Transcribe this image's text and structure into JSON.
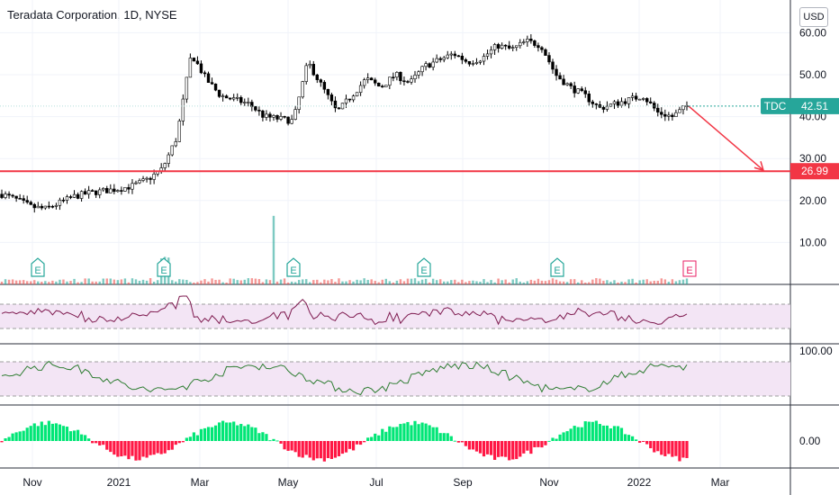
{
  "header": {
    "title": "Teradata Corporation, 1D, NYSE",
    "currency": "USD"
  },
  "colors": {
    "up": "#000000",
    "down": "#000000",
    "level_line": "#f23645",
    "ticker_tag": "#26a69a",
    "earnings": "#26a69a",
    "earnings_upcoming": "#e91e63",
    "rsi": "#7e1a4f",
    "osc": "#2e7d32",
    "band_fill": "#f3e5f5",
    "hist_pos": "#00e676",
    "hist_neg": "#ff1744"
  },
  "chart_data": {
    "type": "candlestick",
    "price_axis": {
      "ticks": [
        "60.00",
        "50.00",
        "40.00",
        "30.00",
        "20.00",
        "10.00"
      ],
      "ylim": [
        0,
        62
      ]
    },
    "time_axis": {
      "ticks": [
        "Nov",
        "2021",
        "Mar",
        "May",
        "Jul",
        "Sep",
        "Nov",
        "2022",
        "Mar"
      ]
    },
    "ticker_tag": {
      "symbol": "TDC",
      "price": "42.51",
      "value": 42.51
    },
    "horizontal_level": {
      "label": "26.99",
      "value": 26.99
    },
    "projection_arrow": {
      "from": 42.5,
      "to": 26.99
    },
    "price_series": [
      [
        "Oct",
        21.5
      ],
      [
        "Oct",
        20.2
      ],
      [
        "Oct",
        18.5
      ],
      [
        "Nov",
        18.0
      ],
      [
        "Nov",
        19.5
      ],
      [
        "Nov",
        21.0
      ],
      [
        "Dec",
        21.8
      ],
      [
        "Dec",
        22.3
      ],
      [
        "Dec",
        22.8
      ],
      [
        "Jan",
        23.5
      ],
      [
        "Jan",
        25.0
      ],
      [
        "Jan",
        27.5
      ],
      [
        "Feb",
        35.0
      ],
      [
        "Feb",
        55.0
      ],
      [
        "Feb",
        49.0
      ],
      [
        "Feb",
        45.0
      ],
      [
        "Mar",
        44.0
      ],
      [
        "Mar",
        43.0
      ],
      [
        "Mar",
        40.0
      ],
      [
        "Apr",
        39.5
      ],
      [
        "Apr",
        39.0
      ],
      [
        "May",
        53.0
      ],
      [
        "May",
        47.0
      ],
      [
        "May",
        41.0
      ],
      [
        "May",
        45.0
      ],
      [
        "Jun",
        49.0
      ],
      [
        "Jun",
        47.0
      ],
      [
        "Jun",
        50.0
      ],
      [
        "Jul",
        48.0
      ],
      [
        "Jul",
        52.0
      ],
      [
        "Aug",
        53.5
      ],
      [
        "Aug",
        55.0
      ],
      [
        "Aug",
        53.0
      ],
      [
        "Sep",
        54.0
      ],
      [
        "Sep",
        57.0
      ],
      [
        "Sep",
        56.0
      ],
      [
        "Oct",
        58.0
      ],
      [
        "Oct",
        57.0
      ],
      [
        "Nov",
        50.0
      ],
      [
        "Nov",
        47.0
      ],
      [
        "Nov",
        45.0
      ],
      [
        "Dec",
        42.0
      ],
      [
        "Dec",
        43.0
      ],
      [
        "Dec",
        44.0
      ],
      [
        "Jan",
        45.0
      ],
      [
        "Jan",
        41.0
      ],
      [
        "Jan",
        40.0
      ],
      [
        "Feb",
        42.51
      ]
    ],
    "earnings_markers": [
      {
        "label": "E",
        "date": "Nov 2020",
        "upcoming": false
      },
      {
        "label": "E",
        "date": "Feb 2021",
        "upcoming": false
      },
      {
        "label": "E",
        "date": "May 2021",
        "upcoming": false
      },
      {
        "label": "E",
        "date": "Aug 2021",
        "upcoming": false
      },
      {
        "label": "E",
        "date": "Nov 2021",
        "upcoming": false
      },
      {
        "label": "E",
        "date": "Feb 2022",
        "upcoming": true
      }
    ],
    "oscillator_axis": {
      "ticks": [
        "100.00"
      ]
    },
    "histogram_axis": {
      "ticks": [
        "0.00"
      ]
    }
  }
}
